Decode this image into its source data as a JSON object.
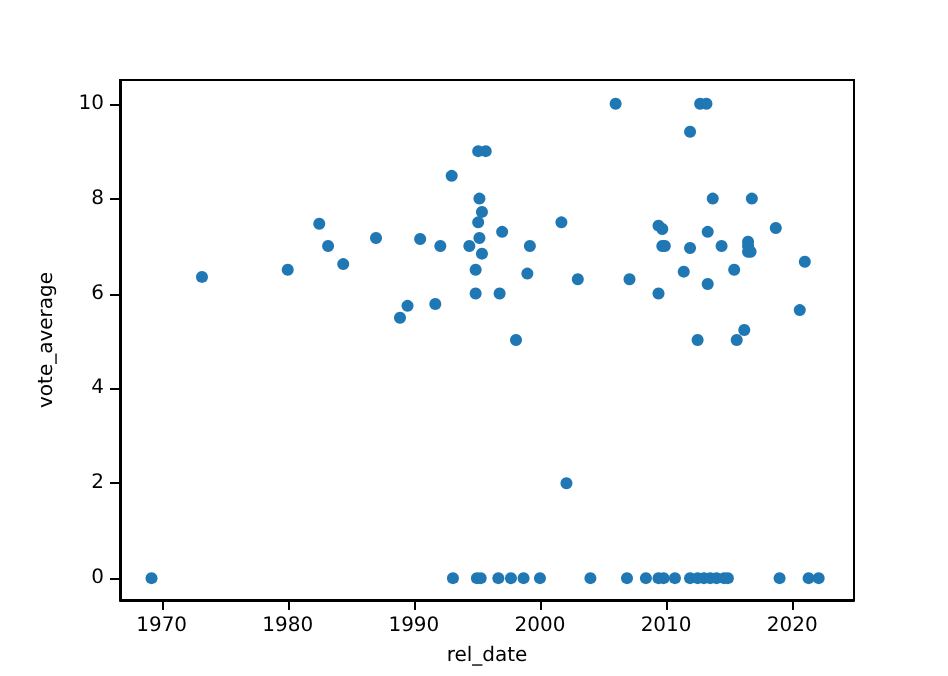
{
  "chart_data": {
    "type": "scatter",
    "xlabel": "rel_date",
    "ylabel": "vote_average",
    "x": [
      1973.2,
      1980.0,
      1982.5,
      1983.2,
      1984.4,
      1987.0,
      1990.5,
      1992.1,
      1993.0,
      1994.4,
      1994.9,
      1994.9,
      1995.1,
      1995.7,
      1995.2,
      1995.4,
      1995.1,
      1995.2,
      1995.4,
      1988.9,
      1989.5,
      1991.7,
      1997.0,
      1996.8,
      1999.2,
      1999.0,
      2001.7,
      2003.0,
      2006.0,
      2007.1,
      2009.4,
      2009.7,
      2009.7,
      2009.9,
      2009.4,
      2011.4,
      2011.9,
      2011.9,
      2012.7,
      2013.2,
      2013.3,
      2013.3,
      2013.7,
      2014.4,
      2015.4,
      2016.5,
      2016.5,
      2016.5,
      2016.7,
      2016.8,
      2018.7,
      2021.0,
      2020.6,
      2016.2,
      2012.5,
      2015.6,
      1998.1,
      2002.1,
      1969.2,
      1993.1,
      1995.0,
      1995.3,
      1996.7,
      1997.7,
      1998.7,
      2000.0,
      2004.0,
      2006.9,
      2008.4,
      2009.4,
      2009.8,
      2010.7,
      2011.9,
      2012.5,
      2013.0,
      2013.5,
      2014.0,
      2014.6,
      2014.9,
      2019.0,
      2021.3,
      2022.1
    ],
    "series": [
      {
        "color": "#1f77b4",
        "values": [
          6.35,
          6.5,
          7.47,
          7.0,
          6.62,
          7.17,
          7.15,
          7.0,
          8.48,
          7.0,
          6.5,
          6.0,
          9.0,
          9.0,
          8.0,
          7.72,
          7.5,
          7.17,
          6.84,
          5.49,
          5.74,
          5.78,
          7.3,
          6.0,
          7.0,
          6.42,
          7.5,
          6.3,
          10.0,
          6.3,
          7.43,
          7.36,
          7.0,
          7.0,
          6.0,
          6.46,
          9.41,
          6.96,
          10.0,
          10.0,
          7.3,
          6.2,
          8.0,
          7.0,
          6.5,
          7.09,
          7.0,
          6.88,
          6.88,
          8.0,
          7.38,
          6.67,
          5.65,
          5.23,
          5.02,
          5.02,
          5.02,
          2.0,
          0,
          0,
          0,
          0,
          0,
          0,
          0,
          0,
          0,
          0,
          0,
          0,
          0,
          0,
          0,
          0,
          0,
          0,
          0,
          0,
          0,
          0,
          0,
          0
        ]
      }
    ],
    "xlim": [
      1966.7,
      2024.9
    ],
    "xticks": [
      1970,
      1980,
      1990,
      2000,
      2010,
      2020
    ],
    "ylim": [
      -0.46,
      10.5
    ],
    "yticks": [
      0,
      2,
      4,
      6,
      8,
      10
    ],
    "grid": false,
    "marker": "circle"
  }
}
